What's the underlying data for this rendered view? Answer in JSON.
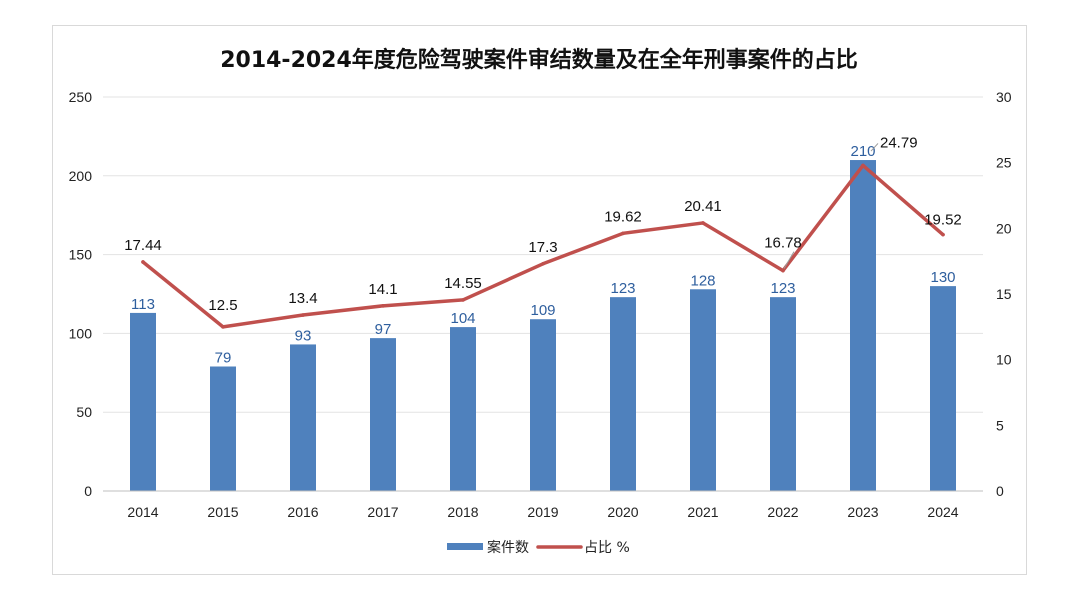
{
  "chart_data": {
    "type": "bar",
    "title": "2014-2024年度危险驾驶案件审结数量及在全年刑事案件的占比",
    "categories": [
      "2014",
      "2015",
      "2016",
      "2017",
      "2018",
      "2019",
      "2020",
      "2021",
      "2022",
      "2023",
      "2024"
    ],
    "series": [
      {
        "name": "案件数",
        "type": "bar",
        "axis": "left",
        "color": "#4f81bd",
        "values": [
          113,
          79,
          93,
          97,
          104,
          109,
          123,
          128,
          123,
          210,
          130
        ]
      },
      {
        "name": "占比 %",
        "type": "line",
        "axis": "right",
        "color": "#c0504d",
        "values": [
          17.44,
          12.5,
          13.4,
          14.1,
          14.55,
          17.3,
          19.62,
          20.41,
          16.78,
          24.79,
          19.52
        ]
      }
    ],
    "y_left": {
      "range": [
        0,
        250
      ],
      "ticks": [
        "0",
        "50",
        "100",
        "150",
        "200",
        "250"
      ]
    },
    "y_right": {
      "range": [
        0,
        30
      ],
      "ticks": [
        "0",
        "5",
        "10",
        "15",
        "20",
        "25",
        "30"
      ]
    },
    "bar_labels": [
      "113",
      "79",
      "93",
      "97",
      "104",
      "109",
      "123",
      "128",
      "123",
      "210",
      "130"
    ],
    "line_labels": [
      "17.44",
      "12.5",
      "13.4",
      "14.1",
      "14.55",
      "17.3",
      "19.62",
      "20.41",
      "16.78",
      "24.79",
      "19.52"
    ],
    "grid": true,
    "legend": "bottom-center"
  }
}
